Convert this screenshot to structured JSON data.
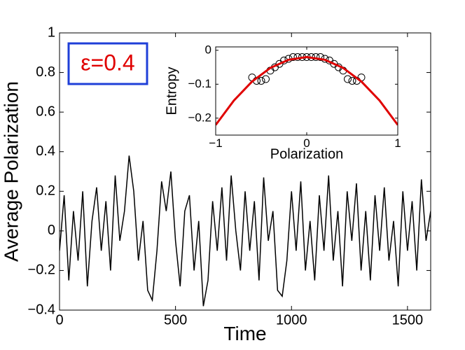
{
  "chart_data": [
    {
      "type": "line",
      "xlabel": "Time",
      "ylabel": "Average Polarization",
      "annotation": "ε=0.4",
      "xlim": [
        0,
        1600
      ],
      "xticks": [
        0,
        500,
        1000,
        1500
      ],
      "ylim": [
        -0.4,
        1
      ],
      "yticks": [
        {
          "value": -0.4,
          "label": "−0.4"
        },
        {
          "value": -0.2,
          "label": "−0.2"
        },
        0,
        0.2,
        0.4,
        0.6,
        0.8,
        1
      ],
      "series": [
        {
          "color": "#000000",
          "x": [
            0,
            20,
            40,
            60,
            80,
            100,
            120,
            140,
            160,
            180,
            200,
            220,
            240,
            260,
            280,
            300,
            320,
            340,
            360,
            380,
            400,
            420,
            440,
            460,
            480,
            500,
            520,
            540,
            560,
            580,
            600,
            620,
            640,
            660,
            680,
            700,
            720,
            740,
            760,
            780,
            800,
            820,
            840,
            860,
            880,
            900,
            920,
            940,
            960,
            980,
            1000,
            1020,
            1040,
            1060,
            1080,
            1100,
            1120,
            1140,
            1160,
            1180,
            1200,
            1220,
            1240,
            1260,
            1280,
            1300,
            1320,
            1340,
            1360,
            1380,
            1400,
            1420,
            1440,
            1460,
            1480,
            1500,
            1520,
            1540,
            1560,
            1580,
            1600
          ],
          "values": [
            -0.1,
            0.18,
            -0.25,
            0.1,
            -0.15,
            0.2,
            -0.28,
            0.05,
            0.22,
            -0.1,
            0.15,
            -0.2,
            0.28,
            -0.05,
            0.1,
            0.38,
            0.2,
            -0.15,
            0.05,
            -0.3,
            -0.35,
            -0.1,
            0.25,
            0.1,
            0.3,
            -0.05,
            -0.28,
            0.1,
            0.18,
            -0.2,
            0.05,
            -0.38,
            -0.25,
            0.15,
            -0.1,
            0.22,
            -0.15,
            0.28,
            0.0,
            -0.2,
            0.2,
            -0.1,
            0.15,
            -0.25,
            0.27,
            -0.05,
            0.1,
            -0.3,
            -0.33,
            -0.15,
            0.2,
            -0.1,
            0.25,
            -0.2,
            0.05,
            -0.25,
            0.18,
            -0.1,
            0.28,
            -0.15,
            0.1,
            -0.28,
            0.2,
            -0.05,
            0.24,
            -0.2,
            0.1,
            -0.25,
            0.18,
            -0.1,
            0.22,
            -0.15,
            0.05,
            -0.28,
            0.2,
            -0.1,
            0.15,
            -0.2,
            0.26,
            -0.05,
            0.1
          ]
        }
      ]
    },
    {
      "type": "scatter",
      "xlabel": "Polarization",
      "ylabel": "Entropy",
      "xlim": [
        -1,
        1
      ],
      "xticks": [
        {
          "value": -1,
          "label": "−1"
        },
        0,
        1
      ],
      "ylim": [
        -0.25,
        0.01
      ],
      "yticks": [
        {
          "value": -0.2,
          "label": "−0.2"
        },
        {
          "value": -0.1,
          "label": "−0.1"
        },
        0
      ],
      "series": [
        {
          "marker": "circle",
          "color": "#000000",
          "x": [
            -0.6,
            -0.55,
            -0.5,
            -0.45,
            -0.4,
            -0.35,
            -0.3,
            -0.25,
            -0.2,
            -0.15,
            -0.1,
            -0.05,
            0,
            0.05,
            0.1,
            0.15,
            0.2,
            0.25,
            0.3,
            0.35,
            0.4,
            0.45,
            0.5,
            0.55,
            0.6
          ],
          "values": [
            -0.08,
            -0.09,
            -0.09,
            -0.085,
            -0.06,
            -0.05,
            -0.04,
            -0.03,
            -0.025,
            -0.02,
            -0.02,
            -0.02,
            -0.02,
            -0.02,
            -0.02,
            -0.02,
            -0.025,
            -0.03,
            -0.04,
            -0.05,
            -0.06,
            -0.085,
            -0.09,
            -0.09,
            -0.08
          ]
        },
        {
          "marker": "line",
          "color": "#e00000",
          "x": [
            -1,
            -0.8,
            -0.6,
            -0.4,
            -0.2,
            0,
            0.2,
            0.4,
            0.6,
            0.8,
            1
          ],
          "values": [
            -0.22,
            -0.148,
            -0.092,
            -0.052,
            -0.028,
            -0.02,
            -0.028,
            -0.052,
            -0.092,
            -0.148,
            -0.22
          ]
        }
      ]
    }
  ]
}
